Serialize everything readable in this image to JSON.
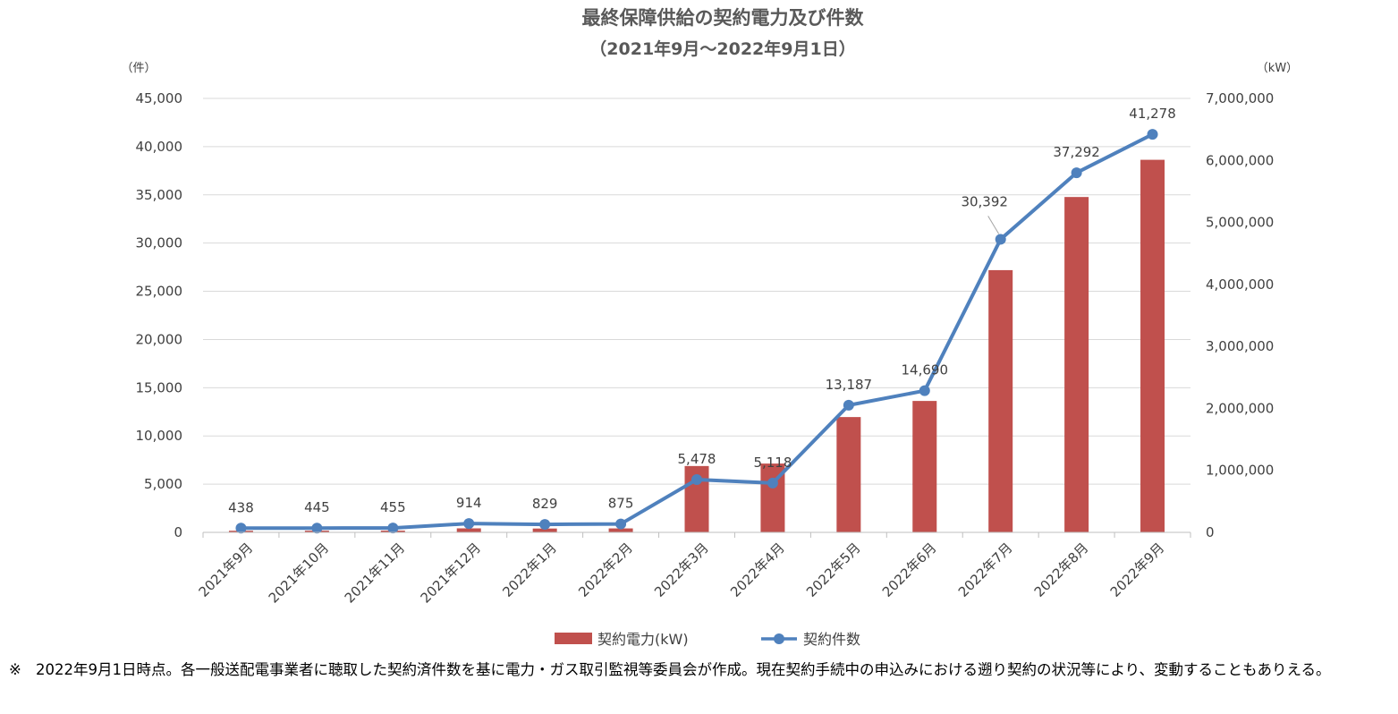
{
  "chart_data": {
    "type": "bar+line",
    "title": "最終保障供給の契約電力及び件数",
    "subtitle": "（2021年9月～2022年9月1日）",
    "categories": [
      "2021年9月",
      "2021年10月",
      "2021年11月",
      "2021年12月",
      "2022年1月",
      "2022年2月",
      "2022年3月",
      "2022年4月",
      "2022年5月",
      "2022年6月",
      "2022年7月",
      "2022年8月",
      "2022年9月"
    ],
    "y_left": {
      "unit": "（件）",
      "range": [
        0,
        45000
      ],
      "ticks": [
        "0",
        "5,000",
        "10,000",
        "15,000",
        "20,000",
        "25,000",
        "30,000",
        "35,000",
        "40,000",
        "45,000"
      ]
    },
    "y_right": {
      "unit": "（kW）",
      "range": [
        0,
        7000000
      ],
      "ticks": [
        "0",
        "1,000,000",
        "2,000,000",
        "3,000,000",
        "4,000,000",
        "5,000,000",
        "6,000,000",
        "7,000,000"
      ]
    },
    "series": [
      {
        "name": "契約電力(kW)",
        "type": "bar",
        "axis": "right",
        "color": "#C0504D",
        "values": [
          26000,
          27000,
          28000,
          65000,
          62000,
          64000,
          1070000,
          1110000,
          1860000,
          2120000,
          4230000,
          5410000,
          6010000
        ]
      },
      {
        "name": "契約件数",
        "type": "line",
        "axis": "left",
        "color": "#4F81BD",
        "values": [
          438,
          445,
          455,
          914,
          829,
          875,
          5478,
          5118,
          13187,
          14690,
          30392,
          37292,
          41278
        ],
        "labels": [
          "438",
          "445",
          "455",
          "914",
          "829",
          "875",
          "5,478",
          "5,118",
          "13,187",
          "14,690",
          "30,392",
          "37,292",
          "41,278"
        ]
      }
    ],
    "grid": true,
    "legend": "bottom"
  },
  "note": {
    "mark": "※",
    "text": "2022年9月1日時点。各一般送配電事業者に聴取した契約済件数を基に電力・ガス取引監視等委員会が作成。現在契約手続中の申込みにおける遡り契約の状況等により、変動することもありえる。"
  }
}
